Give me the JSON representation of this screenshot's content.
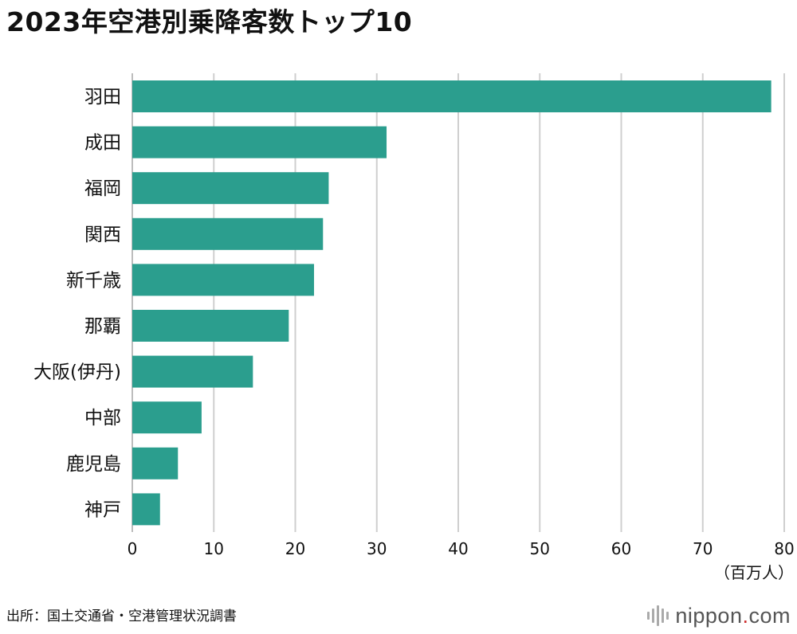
{
  "chart_data": {
    "type": "bar",
    "orientation": "horizontal",
    "title": "2023年空港別乗降客数トップ10",
    "categories": [
      "羽田",
      "成田",
      "福岡",
      "関西",
      "新千歳",
      "那覇",
      "大阪(伊丹)",
      "中部",
      "鹿児島",
      "神戸"
    ],
    "values": [
      78.4,
      31.2,
      24.1,
      23.4,
      22.3,
      19.2,
      14.8,
      8.5,
      5.6,
      3.4
    ],
    "xlim": [
      0,
      80
    ],
    "xticks": [
      0,
      10,
      20,
      30,
      40,
      50,
      60,
      70,
      80
    ],
    "xlabel": "（百万人）",
    "grid": true,
    "bar_color": "#2b9e8e"
  },
  "footer": {
    "source": "出所：国土交通省・空港管理状況調書",
    "brand_name": "nippon",
    "brand_dot": ".",
    "brand_tld": "com"
  }
}
